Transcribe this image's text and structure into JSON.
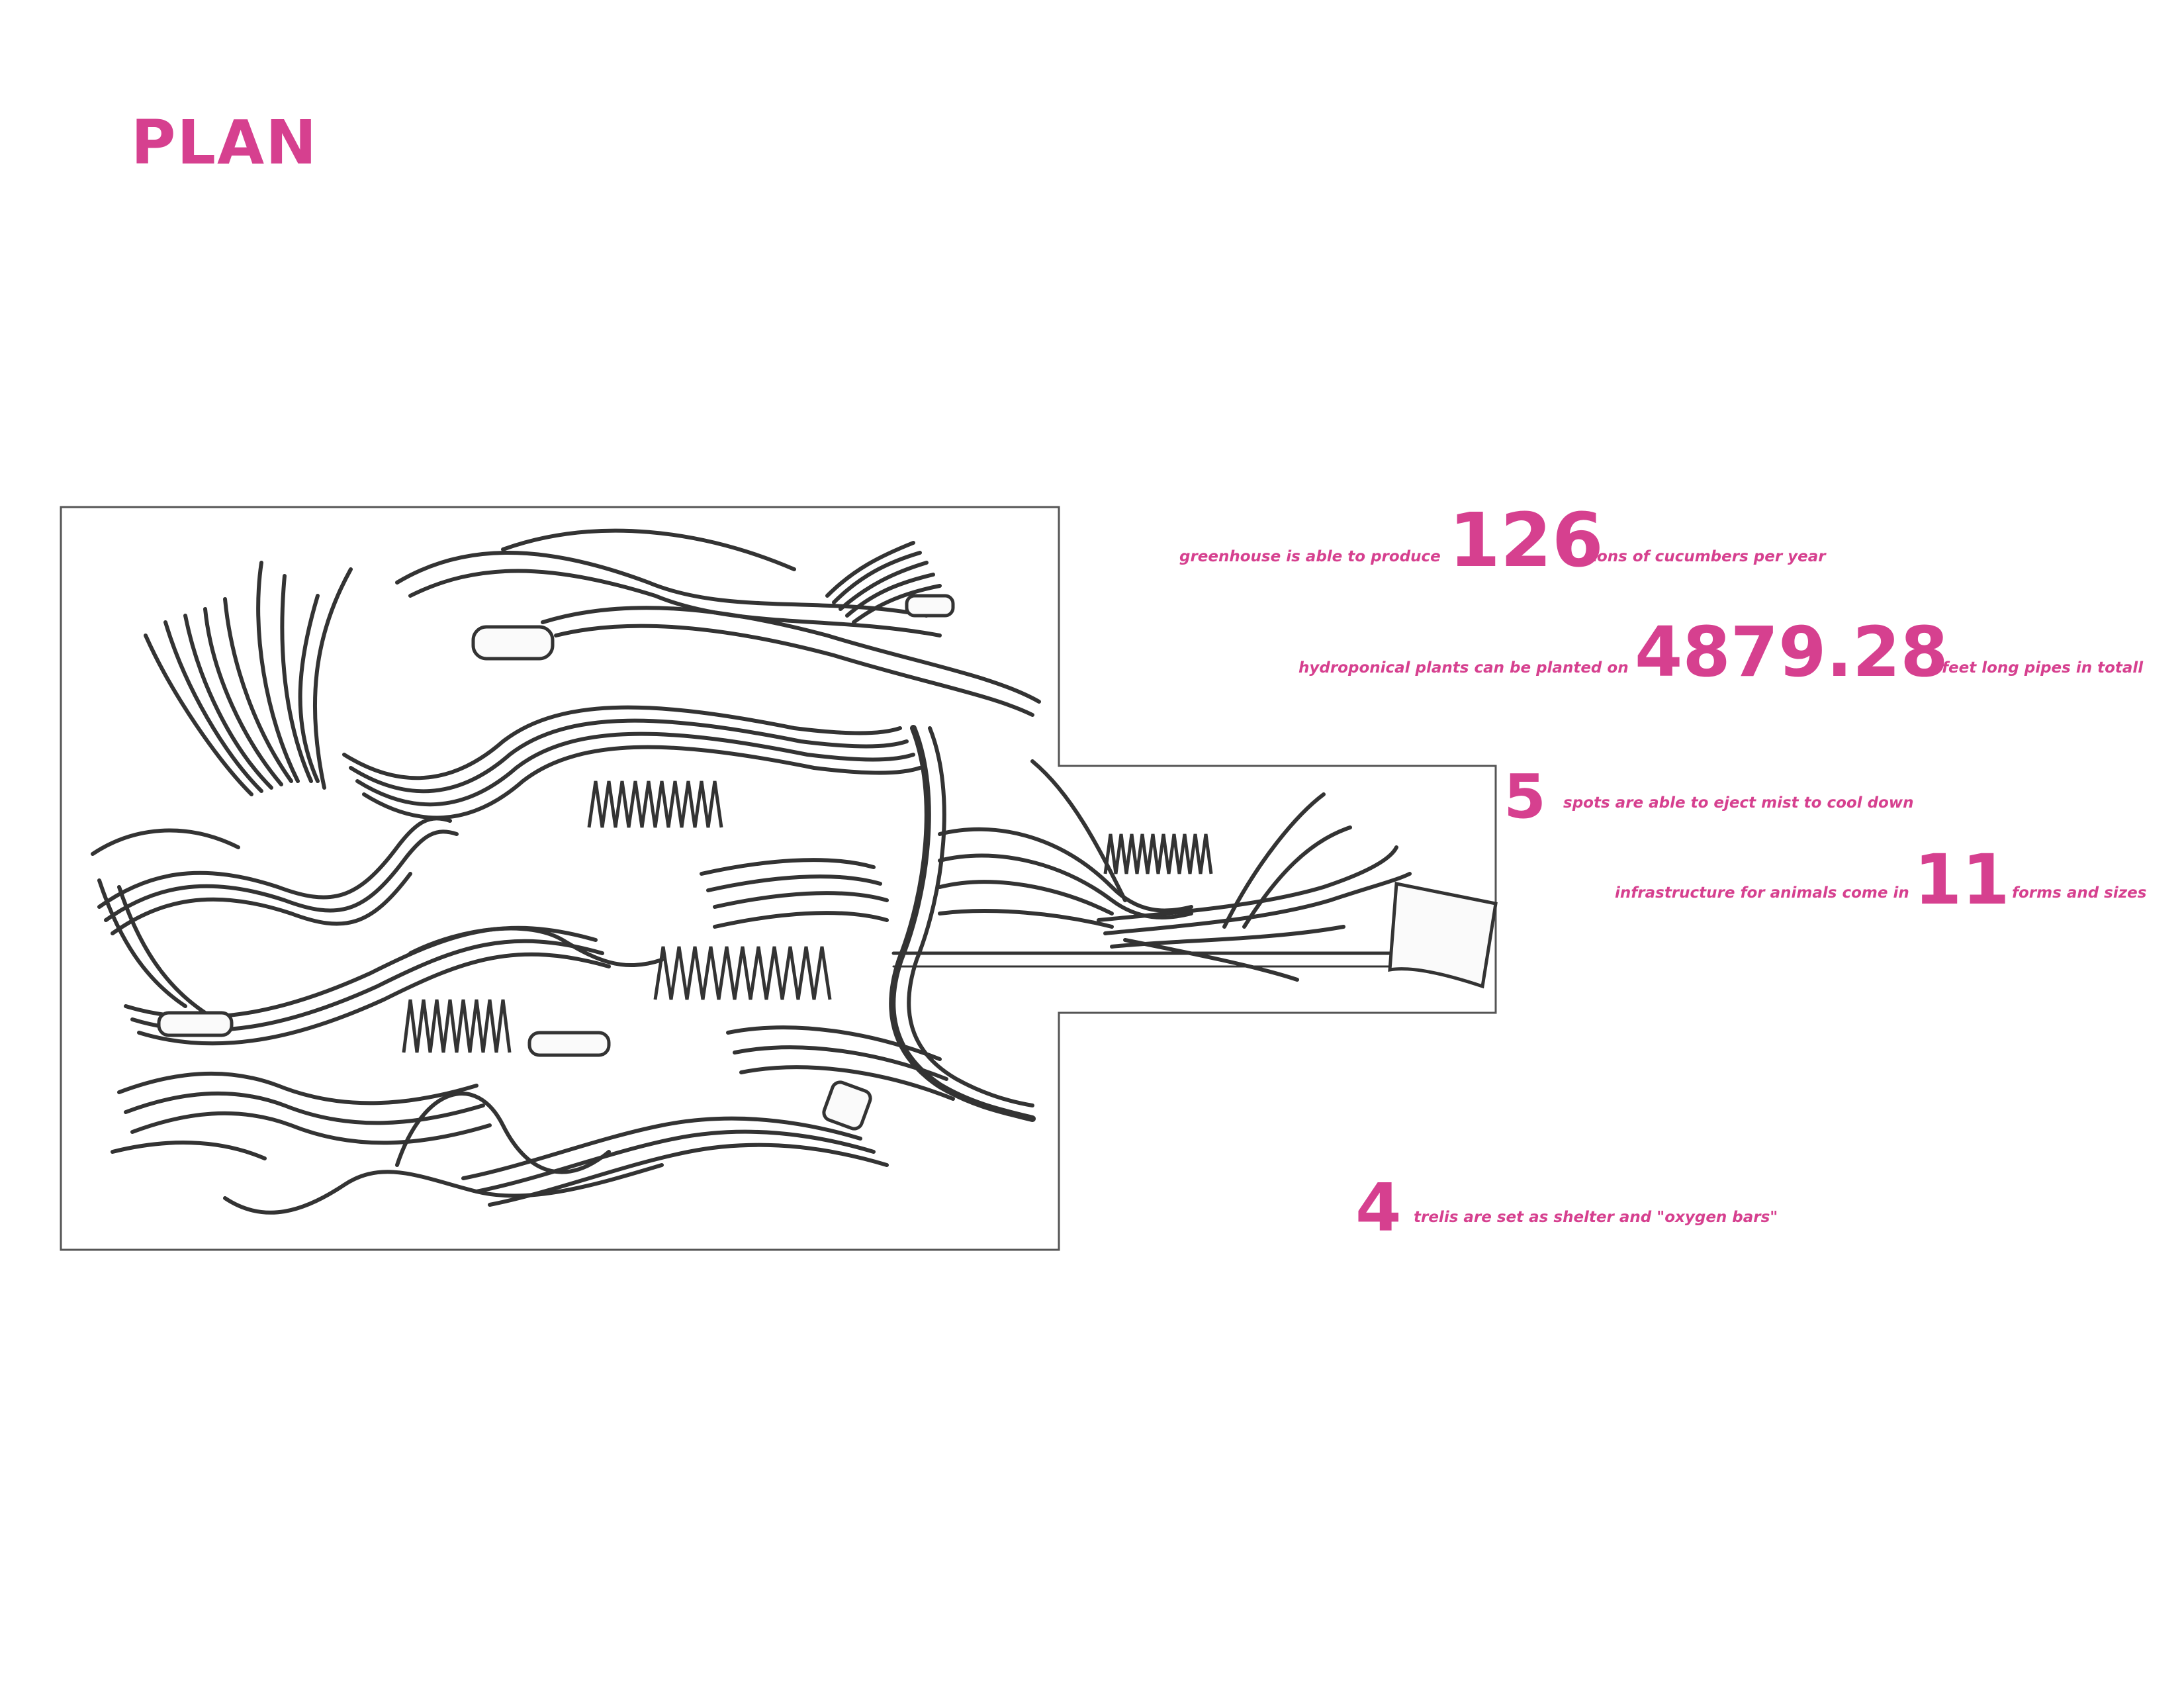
{
  "page": {
    "title": "PLAN",
    "accent_color": "#d6408f"
  },
  "stats": [
    {
      "lead": "greenhouse  is able to produce",
      "number": "126",
      "trail": "tons of cucumbers per year"
    },
    {
      "lead": "hydroponical plants can be planted on",
      "number": "4879.28",
      "trail": "feet long pipes in totall"
    },
    {
      "lead": "",
      "number": "5",
      "trail": "spots are able to eject mist to cool down"
    },
    {
      "lead": "infrastructure for animals come in",
      "number": "11",
      "trail": "forms and sizes"
    },
    {
      "lead": "",
      "number": "4",
      "trail": "trelis are set as shelter and \"oxygen bars\""
    }
  ]
}
